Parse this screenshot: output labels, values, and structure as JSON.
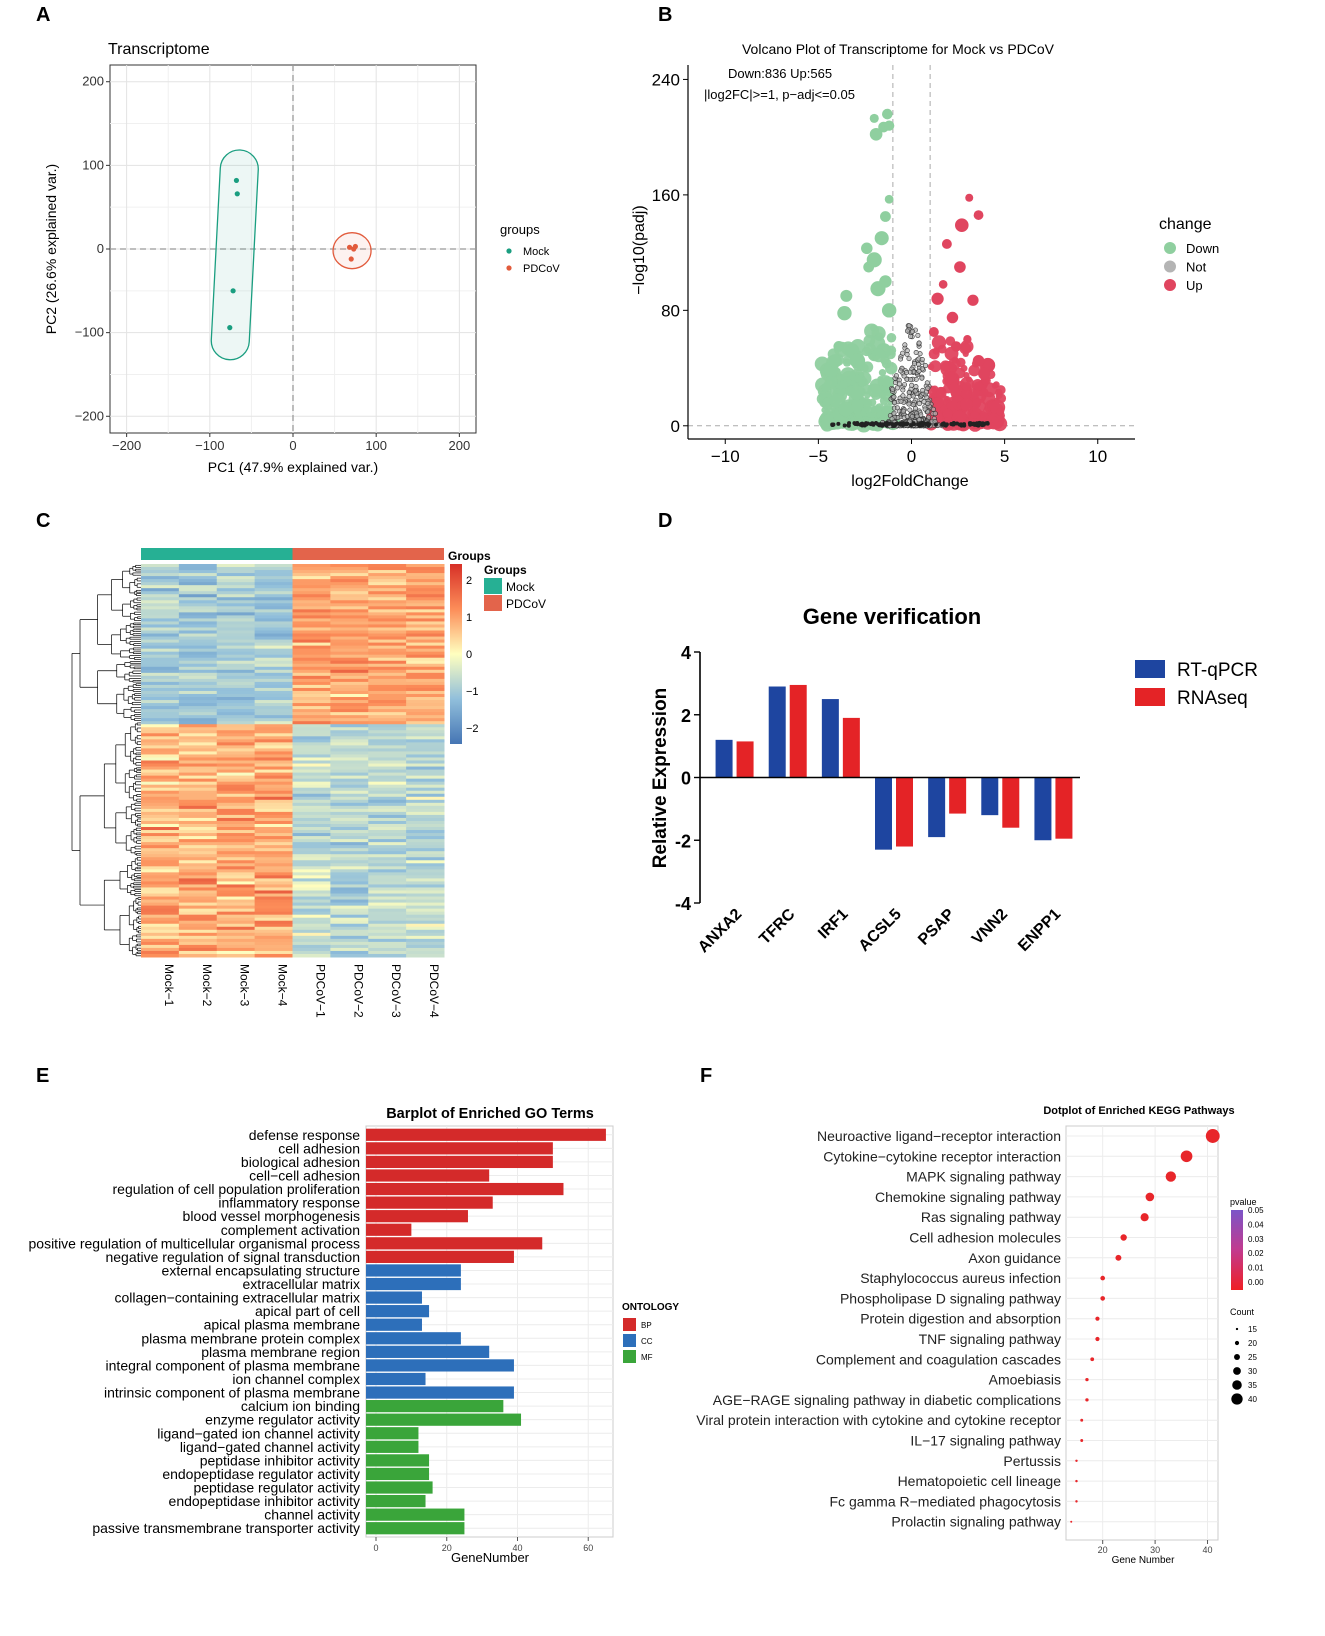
{
  "panels": {
    "A": "A",
    "B": "B",
    "C": "C",
    "D": "D",
    "E": "E",
    "F": "F"
  },
  "chart_data": [
    {
      "id": "A",
      "type": "scatter",
      "title": "Transcriptome",
      "xlabel": "PC1 (47.9% explained var.)",
      "ylabel": "PC2 (26.6% explained var.)",
      "xlim": [
        -220,
        220
      ],
      "ylim": [
        -220,
        220
      ],
      "xticks": [
        -200,
        -100,
        0,
        100,
        200
      ],
      "yticks": [
        -200,
        -100,
        0,
        100,
        200
      ],
      "xtick_labels": [
        "−200",
        "−100",
        "0",
        "100",
        "200"
      ],
      "ytick_labels": [
        "−200",
        "−100",
        "0",
        "100",
        "200"
      ],
      "legend_title": "groups",
      "series": [
        {
          "name": "Mock",
          "color": "#1a9e80",
          "points": [
            [
              -68,
              82
            ],
            [
              -67,
              66
            ],
            [
              -72,
              -50
            ],
            [
              -76,
              -94
            ]
          ]
        },
        {
          "name": "PDCoV",
          "color": "#e25b3c",
          "points": [
            [
              68,
              2
            ],
            [
              73,
              0
            ],
            [
              70,
              -12
            ],
            [
              75,
              3
            ]
          ]
        }
      ]
    },
    {
      "id": "B",
      "type": "scatter",
      "title": "Volcano Plot of Transcriptome for Mock vs PDCoV",
      "annotation_line1": "Down:836 Up:565",
      "annotation_line2": "|log2FC|>=1, p−adj<=0.05",
      "xlabel": "log2FoldChange",
      "ylabel": "−log10(padj)",
      "xlim": [
        -12,
        12
      ],
      "ylim": [
        -5,
        250
      ],
      "xticks": [
        -10,
        -5,
        0,
        5,
        10
      ],
      "xtick_labels": [
        "−10",
        "−5",
        "0",
        "5",
        "10"
      ],
      "yticks": [
        0,
        80,
        160,
        240
      ],
      "ytick_labels": [
        "0",
        "80",
        "160",
        "240"
      ],
      "legend_title": "change",
      "legend": [
        {
          "name": "Down",
          "color": "#8fcf9f"
        },
        {
          "name": "Not",
          "color": "#b4b4b4"
        },
        {
          "name": "Up",
          "color": "#e0455f"
        }
      ],
      "thresholds": {
        "x": [
          -1,
          1
        ],
        "y": 0
      }
    },
    {
      "id": "C",
      "type": "heatmap",
      "columns": [
        "Mock−1",
        "Mock−2",
        "Mock−3",
        "Mock−4",
        "PDCoV−1",
        "PDCoV−2",
        "PDCoV−3",
        "PDCoV−4"
      ],
      "groups_title": "Groups",
      "groups_title2": "Groups",
      "groups": [
        {
          "name": "Mock",
          "color": "#26b094"
        },
        {
          "name": "PDCoV",
          "color": "#e3644b"
        }
      ],
      "scale_ticks": [
        2,
        1,
        0,
        -1,
        -2
      ],
      "scale_labels": [
        "2",
        "1",
        "0",
        "−1",
        "−2"
      ]
    },
    {
      "id": "D",
      "type": "bar",
      "title": "Gene verification",
      "ylabel": "Relative Expression",
      "ylim": [
        -4,
        4
      ],
      "yticks": [
        -4,
        -2,
        0,
        2,
        4
      ],
      "ytick_labels": [
        "-4",
        "-2",
        "0",
        "2",
        "4"
      ],
      "categories": [
        "ANXA2",
        "TFRC",
        "IRF1",
        "ACSL5",
        "PSAP",
        "VNN2",
        "ENPP1"
      ],
      "series": [
        {
          "name": "RT-qPCR",
          "color": "#1e45a0",
          "values": [
            1.2,
            2.9,
            2.5,
            -2.3,
            -1.9,
            -1.2,
            -2.0
          ]
        },
        {
          "name": "RNAseq",
          "color": "#e42326",
          "values": [
            1.15,
            2.95,
            1.9,
            -2.2,
            -1.15,
            -1.6,
            -1.95
          ]
        }
      ]
    },
    {
      "id": "E",
      "type": "bar",
      "title": "Barplot of Enriched GO Terms",
      "xlabel": "GeneNumber",
      "xlim": [
        0,
        67
      ],
      "xticks": [
        0,
        20,
        40,
        60
      ],
      "xtick_labels": [
        "0",
        "20",
        "40",
        "60"
      ],
      "legend_title": "ONTOLOGY",
      "legend": [
        {
          "name": "BP",
          "color": "#d42a2a"
        },
        {
          "name": "CC",
          "color": "#2d6fba"
        },
        {
          "name": "MF",
          "color": "#3aa53a"
        }
      ],
      "terms": [
        {
          "term": "defense response",
          "value": 65,
          "ont": "BP"
        },
        {
          "term": "cell adhesion",
          "value": 50,
          "ont": "BP"
        },
        {
          "term": "biological adhesion",
          "value": 50,
          "ont": "BP"
        },
        {
          "term": "cell−cell adhesion",
          "value": 32,
          "ont": "BP"
        },
        {
          "term": "regulation of cell population proliferation",
          "value": 53,
          "ont": "BP"
        },
        {
          "term": "inflammatory response",
          "value": 33,
          "ont": "BP"
        },
        {
          "term": "blood vessel morphogenesis",
          "value": 26,
          "ont": "BP"
        },
        {
          "term": "complement activation",
          "value": 10,
          "ont": "BP"
        },
        {
          "term": "positive regulation of multicellular organismal process",
          "value": 47,
          "ont": "BP"
        },
        {
          "term": "negative regulation of signal transduction",
          "value": 39,
          "ont": "BP"
        },
        {
          "term": "external encapsulating structure",
          "value": 24,
          "ont": "CC"
        },
        {
          "term": "extracellular matrix",
          "value": 24,
          "ont": "CC"
        },
        {
          "term": "collagen−containing extracellular matrix",
          "value": 13,
          "ont": "CC"
        },
        {
          "term": "apical part of cell",
          "value": 15,
          "ont": "CC"
        },
        {
          "term": "apical plasma membrane",
          "value": 13,
          "ont": "CC"
        },
        {
          "term": "plasma membrane protein complex",
          "value": 24,
          "ont": "CC"
        },
        {
          "term": "plasma membrane region",
          "value": 32,
          "ont": "CC"
        },
        {
          "term": "integral component of plasma membrane",
          "value": 39,
          "ont": "CC"
        },
        {
          "term": "ion channel complex",
          "value": 14,
          "ont": "CC"
        },
        {
          "term": "intrinsic component of plasma membrane",
          "value": 39,
          "ont": "CC"
        },
        {
          "term": "calcium ion binding",
          "value": 36,
          "ont": "MF"
        },
        {
          "term": "enzyme regulator activity",
          "value": 41,
          "ont": "MF"
        },
        {
          "term": "ligand−gated ion channel activity",
          "value": 12,
          "ont": "MF"
        },
        {
          "term": "ligand−gated channel activity",
          "value": 12,
          "ont": "MF"
        },
        {
          "term": "peptidase inhibitor activity",
          "value": 15,
          "ont": "MF"
        },
        {
          "term": "endopeptidase regulator activity",
          "value": 15,
          "ont": "MF"
        },
        {
          "term": "peptidase regulator activity",
          "value": 16,
          "ont": "MF"
        },
        {
          "term": "endopeptidase inhibitor activity",
          "value": 14,
          "ont": "MF"
        },
        {
          "term": "channel activity",
          "value": 25,
          "ont": "MF"
        },
        {
          "term": "passive transmembrane transporter activity",
          "value": 25,
          "ont": "MF"
        }
      ]
    },
    {
      "id": "F",
      "type": "scatter",
      "title": "Dotplot of Enriched KEGG Pathways",
      "xlabel": "Gene Number",
      "xlim": [
        13,
        42
      ],
      "xticks": [
        20,
        30,
        40
      ],
      "xtick_labels": [
        "20",
        "30",
        "40"
      ],
      "pvalue_title": "pvalue",
      "pvalue_labels": [
        "0.05",
        "0.04",
        "0.03",
        "0.02",
        "0.01",
        "0.00"
      ],
      "count_title": "Count",
      "count_labels": [
        "15",
        "20",
        "25",
        "30",
        "35",
        "40"
      ],
      "pathways": [
        {
          "name": "Neuroactive ligand−receptor interaction",
          "count": 41
        },
        {
          "name": "Cytokine−cytokine receptor interaction",
          "count": 36
        },
        {
          "name": "MAPK signaling pathway",
          "count": 33
        },
        {
          "name": "Chemokine signaling pathway",
          "count": 29
        },
        {
          "name": "Ras signaling pathway",
          "count": 28
        },
        {
          "name": "Cell adhesion molecules",
          "count": 24
        },
        {
          "name": "Axon guidance",
          "count": 23
        },
        {
          "name": "Staphylococcus aureus infection",
          "count": 20
        },
        {
          "name": "Phospholipase D signaling pathway",
          "count": 20
        },
        {
          "name": "Protein digestion and absorption",
          "count": 19
        },
        {
          "name": "TNF signaling pathway",
          "count": 19
        },
        {
          "name": "Complement and coagulation cascades",
          "count": 18
        },
        {
          "name": "Amoebiasis",
          "count": 17
        },
        {
          "name": "AGE−RAGE signaling pathway in diabetic complications",
          "count": 17
        },
        {
          "name": "Viral protein interaction with cytokine and cytokine receptor",
          "count": 16
        },
        {
          "name": "IL−17 signaling pathway",
          "count": 16
        },
        {
          "name": "Pertussis",
          "count": 15
        },
        {
          "name": "Hematopoietic cell lineage",
          "count": 15
        },
        {
          "name": "Fc gamma R−mediated phagocytosis",
          "count": 15
        },
        {
          "name": "Prolactin signaling pathway",
          "count": 14
        }
      ]
    }
  ]
}
